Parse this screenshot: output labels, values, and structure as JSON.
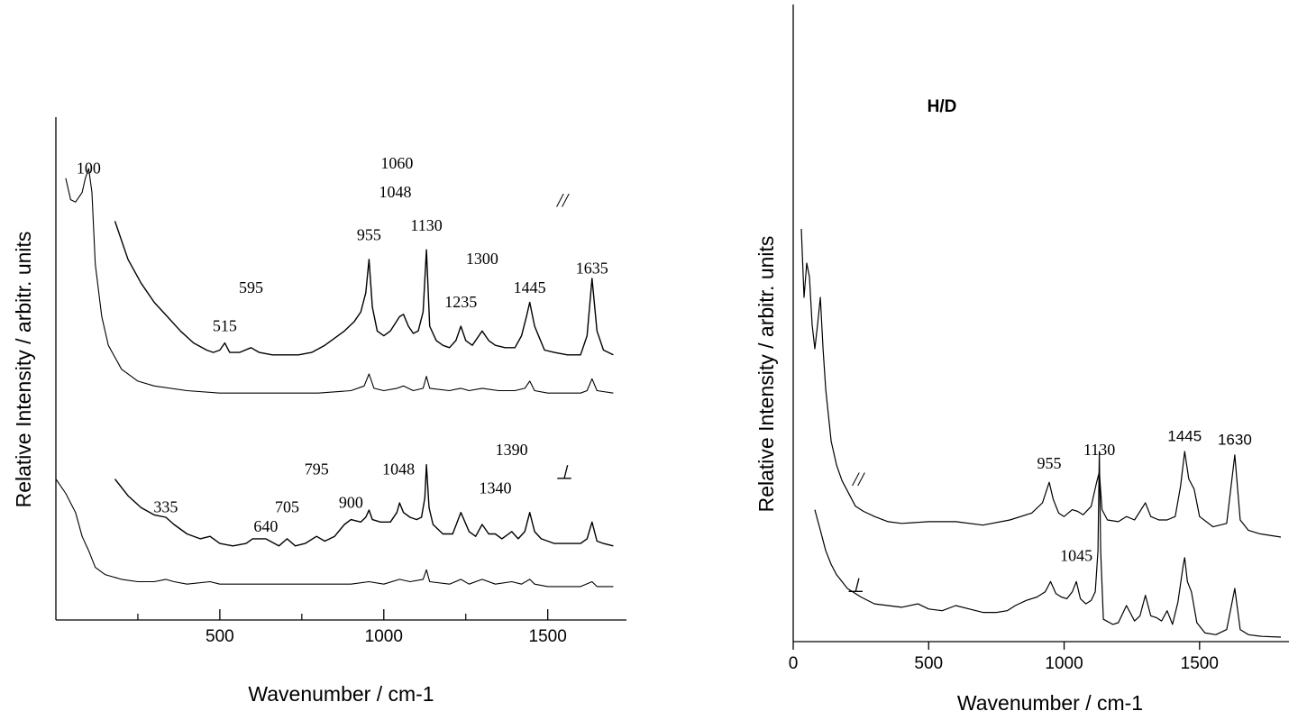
{
  "chart_data": [
    {
      "type": "line",
      "xlabel": "Wavenumber / cm-1",
      "ylabel": "Relative Intensity / arbitr. units",
      "xlim": [
        0,
        1740
      ],
      "ylim": [
        0,
        100
      ],
      "xticks": [
        500,
        1000,
        1500
      ],
      "minor_xticks": [
        250,
        750,
        1250
      ],
      "grid": false,
      "legend": "none",
      "polarization_labels": [
        {
          "text": "//",
          "x": 1545,
          "y": 85
        },
        {
          "text": "⊥",
          "x": 1550,
          "y": 28
        }
      ],
      "annotations": [
        {
          "text": "100",
          "x": 100,
          "y": 92
        },
        {
          "text": "1060",
          "x": 1040,
          "y": 93
        },
        {
          "text": "1048",
          "x": 1035,
          "y": 87
        },
        {
          "text": "955",
          "x": 955,
          "y": 78
        },
        {
          "text": "1130",
          "x": 1130,
          "y": 80
        },
        {
          "text": "1300",
          "x": 1300,
          "y": 73
        },
        {
          "text": "1635",
          "x": 1635,
          "y": 71
        },
        {
          "text": "595",
          "x": 595,
          "y": 67
        },
        {
          "text": "1235",
          "x": 1235,
          "y": 64
        },
        {
          "text": "1445",
          "x": 1445,
          "y": 67
        },
        {
          "text": "515",
          "x": 515,
          "y": 59
        },
        {
          "text": "1390",
          "x": 1390,
          "y": 33
        },
        {
          "text": "795",
          "x": 795,
          "y": 29
        },
        {
          "text": "1048",
          "x": 1045,
          "y": 29
        },
        {
          "text": "1340",
          "x": 1340,
          "y": 25
        },
        {
          "text": "705",
          "x": 705,
          "y": 21
        },
        {
          "text": "900",
          "x": 900,
          "y": 22
        },
        {
          "text": "335",
          "x": 335,
          "y": 21
        },
        {
          "text": "640",
          "x": 640,
          "y": 17
        }
      ],
      "series": [
        {
          "x": [
            180,
            220,
            260,
            300,
            340,
            380,
            420,
            460,
            480,
            500,
            515,
            530,
            560,
            595,
            620,
            660,
            700,
            740,
            780,
            820,
            850,
            880,
            910,
            930,
            945,
            955,
            965,
            980,
            1000,
            1020,
            1048,
            1060,
            1075,
            1090,
            1105,
            1120,
            1130,
            1140,
            1160,
            1180,
            1200,
            1220,
            1235,
            1250,
            1270,
            1300,
            1320,
            1340,
            1370,
            1400,
            1420,
            1435,
            1445,
            1460,
            1475,
            1490,
            1520,
            1560,
            1600,
            1620,
            1635,
            1650,
            1670,
            1700
          ],
          "y": [
            82,
            74,
            69,
            65,
            62,
            59,
            56.5,
            55,
            54.5,
            55,
            56.5,
            54.5,
            54.5,
            55.5,
            54.5,
            54,
            54,
            54,
            54.5,
            56,
            57.5,
            59,
            61,
            63,
            67,
            74,
            64,
            59,
            58,
            59,
            62,
            62.5,
            60,
            58.5,
            59,
            63,
            76,
            60,
            57,
            56,
            55.5,
            57,
            60,
            57,
            56,
            59,
            57,
            56,
            55.5,
            55.5,
            58,
            62,
            65,
            60,
            57.5,
            55,
            54.5,
            54,
            54,
            58,
            70,
            59,
            55,
            54
          ]
        },
        {
          "x": [
            30,
            45,
            60,
            80,
            90,
            100,
            110,
            120,
            140,
            160,
            200,
            250,
            300,
            400,
            500,
            600,
            700,
            800,
            900,
            940,
            955,
            970,
            1000,
            1040,
            1060,
            1090,
            1120,
            1130,
            1140,
            1200,
            1235,
            1260,
            1300,
            1350,
            1400,
            1430,
            1445,
            1460,
            1500,
            1600,
            1620,
            1635,
            1650,
            1700
          ],
          "y": [
            91,
            86.5,
            86,
            88,
            91,
            93,
            88,
            73,
            62,
            56,
            51,
            48.5,
            47.5,
            46.5,
            46,
            46,
            46,
            46,
            46.5,
            47.5,
            50,
            47,
            46.5,
            47,
            47.5,
            46.5,
            47,
            49.5,
            47,
            46.5,
            47,
            46.5,
            47,
            46.5,
            46.5,
            47,
            48.5,
            46.5,
            46,
            46,
            46.5,
            49,
            46.5,
            46
          ]
        },
        {
          "x": [
            180,
            220,
            260,
            300,
            335,
            360,
            400,
            440,
            470,
            500,
            540,
            580,
            600,
            640,
            680,
            705,
            730,
            760,
            795,
            820,
            850,
            880,
            900,
            930,
            945,
            955,
            965,
            990,
            1020,
            1040,
            1048,
            1060,
            1080,
            1100,
            1115,
            1125,
            1130,
            1138,
            1150,
            1180,
            1210,
            1235,
            1260,
            1280,
            1300,
            1320,
            1340,
            1360,
            1390,
            1410,
            1430,
            1445,
            1460,
            1480,
            1520,
            1560,
            1600,
            1620,
            1635,
            1650,
            1670,
            1700
          ],
          "y": [
            28,
            24.5,
            22,
            20.5,
            20,
            18.5,
            16.5,
            15.5,
            16,
            14.5,
            14,
            14.5,
            15.5,
            15.5,
            14,
            15.5,
            14,
            14.5,
            16,
            15,
            16,
            18.5,
            19.5,
            19,
            20,
            21.5,
            19.5,
            19,
            19,
            21,
            23,
            21,
            20,
            19.5,
            20,
            24,
            31,
            22,
            18.5,
            16.5,
            16.5,
            21,
            17,
            16,
            18.5,
            16.5,
            16.5,
            15.5,
            17,
            15.5,
            17,
            21,
            17,
            15.5,
            14.5,
            14.5,
            14.5,
            15.5,
            19,
            15,
            14.5,
            14
          ]
        },
        {
          "x": [
            0,
            30,
            60,
            80,
            100,
            120,
            150,
            200,
            250,
            300,
            335,
            360,
            400,
            470,
            500,
            600,
            700,
            800,
            900,
            955,
            1000,
            1048,
            1080,
            1120,
            1130,
            1140,
            1200,
            1235,
            1260,
            1300,
            1340,
            1390,
            1420,
            1445,
            1460,
            1500,
            1600,
            1635,
            1650,
            1700
          ],
          "y": [
            28,
            25,
            21,
            16,
            13,
            9.5,
            8,
            7,
            6.5,
            6.5,
            7,
            6.5,
            6,
            6.5,
            6,
            6,
            6,
            6,
            6,
            6.5,
            6,
            7,
            6.5,
            7,
            9,
            6.5,
            6,
            7,
            6,
            7,
            6,
            6.5,
            6,
            7,
            6,
            5.5,
            5.5,
            6.5,
            5.5,
            5.5
          ]
        }
      ]
    },
    {
      "type": "line",
      "title": "H/D",
      "xlabel": "Wavenumber / cm-1",
      "ylabel": "Relative Intensity / arbitr. units",
      "xlim": [
        0,
        1830
      ],
      "ylim": [
        0,
        100
      ],
      "xticks": [
        0,
        500,
        1000,
        1500
      ],
      "grid": false,
      "legend": "none",
      "polarization_labels": [
        {
          "text": "//",
          "x": 240,
          "y": 45
        },
        {
          "text": "⊥",
          "x": 230,
          "y": 14
        }
      ],
      "annotations": [
        {
          "text": "1445",
          "x": 1445,
          "y": 58
        },
        {
          "text": "1630",
          "x": 1630,
          "y": 57
        },
        {
          "text": "955",
          "x": 945,
          "y": 50
        },
        {
          "text": "1130",
          "x": 1130,
          "y": 54
        },
        {
          "text": "1045",
          "x": 1045,
          "y": 23
        }
      ],
      "series": [
        {
          "x": [
            30,
            40,
            50,
            60,
            70,
            80,
            90,
            100,
            110,
            120,
            140,
            160,
            180,
            200,
            230,
            260,
            300,
            350,
            400,
            500,
            600,
            700,
            800,
            880,
            920,
            945,
            960,
            980,
            1000,
            1030,
            1050,
            1070,
            1100,
            1120,
            1130,
            1140,
            1160,
            1200,
            1230,
            1260,
            1300,
            1320,
            1350,
            1380,
            1410,
            1430,
            1445,
            1460,
            1480,
            1500,
            1550,
            1600,
            1630,
            1650,
            1680,
            1720,
            1800
          ],
          "y": [
            120,
            100,
            110,
            106,
            92,
            85,
            92,
            100,
            85,
            73,
            58,
            51,
            46.5,
            43.5,
            39,
            37.5,
            36,
            34.5,
            34,
            34.5,
            34.5,
            33.5,
            35,
            37,
            40,
            46,
            41,
            37,
            36,
            38,
            37.5,
            36.5,
            39,
            46,
            49,
            38,
            35,
            34.5,
            36,
            35,
            40,
            36,
            35,
            35,
            36,
            45,
            55,
            47,
            44,
            36,
            33,
            34,
            54,
            35,
            32,
            31,
            30
          ]
        },
        {
          "x": [
            80,
            90,
            100,
            110,
            120,
            140,
            160,
            200,
            250,
            300,
            350,
            400,
            460,
            500,
            550,
            600,
            650,
            700,
            750,
            790,
            820,
            860,
            900,
            930,
            950,
            970,
            990,
            1010,
            1030,
            1045,
            1060,
            1080,
            1100,
            1115,
            1125,
            1130,
            1135,
            1145,
            1180,
            1200,
            1230,
            1260,
            1280,
            1300,
            1320,
            1340,
            1360,
            1380,
            1400,
            1420,
            1440,
            1445,
            1455,
            1470,
            1490,
            1520,
            1560,
            1600,
            1630,
            1650,
            1680,
            1730,
            1800
          ],
          "y": [
            38,
            35,
            32,
            29,
            26,
            22,
            19,
            15,
            12.5,
            10.5,
            10,
            9.5,
            10.5,
            9,
            8.5,
            10,
            9,
            8,
            8,
            8.5,
            10,
            11.5,
            12.5,
            14,
            17,
            13.5,
            12.5,
            12,
            14,
            17,
            12,
            10.5,
            11.5,
            14,
            26,
            55,
            26,
            6,
            4.5,
            5,
            10,
            5.5,
            7,
            13,
            7,
            6.5,
            5.5,
            8.5,
            4.5,
            11,
            22,
            24,
            17,
            14,
            5,
            2,
            1.5,
            3,
            15,
            3,
            1.5,
            1,
            0.8
          ]
        }
      ]
    }
  ]
}
